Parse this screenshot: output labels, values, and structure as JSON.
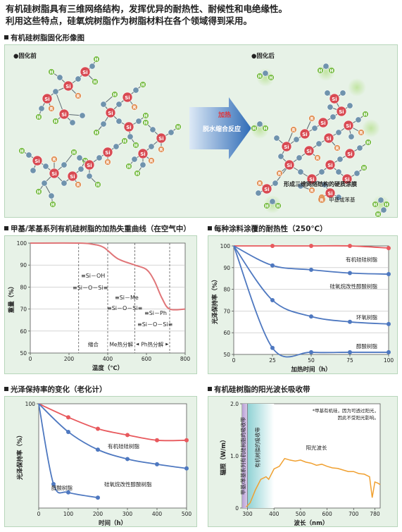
{
  "intro": {
    "line1": "有机硅树脂具有三维网络结构，发挥优异的耐热性、耐候性和电绝缘性。",
    "line2": "利用这些特点，硅氧烷树脂作为树脂材料在各个领域得到采用。"
  },
  "diagram": {
    "title": "有机硅树脂固化形像图",
    "before_label": "●固化前",
    "after_label": "●固化后",
    "arrow_top": "加热",
    "arrow_mid": "脱水缩合反应",
    "film_caption": "形成三维网络结构的硬质涂膜",
    "legend_symbol": "R",
    "legend_text": "甲基或苯基",
    "atom_si": "Si",
    "atom_h": "H",
    "atom_r": "R",
    "colors": {
      "si": "#d84a52",
      "o": "#6f93ad",
      "h": "#7fc050",
      "r": "#e2955c"
    }
  },
  "charts": [
    {
      "title": "甲基/苯基系列有机硅树脂的加热失重曲线（在空气中）",
      "type": "line",
      "xlabel": "温度（℃）",
      "ylabel": "重量（%）",
      "xlim": [
        0,
        800
      ],
      "ylim": [
        50,
        100
      ],
      "xticks": [
        "0",
        "200",
        "400",
        "600",
        "800"
      ],
      "yticks": [
        "50",
        "60",
        "70",
        "80",
        "90",
        "100"
      ],
      "series": [
        {
          "x": [
            0,
            250,
            320,
            380,
            450,
            540,
            600,
            640,
            680,
            720,
            800
          ],
          "y": [
            100,
            100,
            99.5,
            98,
            93,
            90,
            88,
            83,
            75,
            70,
            70
          ]
        }
      ],
      "regions": [
        "缩合",
        "Me热分解",
        "Ph热分解"
      ],
      "formulas": [
        "≡Si－OH",
        "≡Si－O－Si≡",
        "≡Si－Me",
        "≡Si－O－Si≡",
        "≡Si－Ph",
        "≡Si－O－Si≡"
      ],
      "color": "#e07578"
    },
    {
      "title": "每种涂料涂覆的耐热性（250℃）",
      "type": "line",
      "xlabel": "加热时间（h）",
      "ylabel": "光泽保持率（%）",
      "xlim": [
        0,
        100
      ],
      "ylim": [
        50,
        100
      ],
      "xticks": [
        "0",
        "25",
        "50",
        "75",
        "100"
      ],
      "yticks": [
        "50",
        "60",
        "70",
        "80",
        "90",
        "100"
      ],
      "series": [
        {
          "name": "有机硅硅树脂",
          "color": "#e8595d",
          "x": [
            0,
            25,
            50,
            75,
            100
          ],
          "y": [
            100,
            100,
            100,
            100,
            99
          ]
        },
        {
          "name": "硅氧烷改性醇酸树脂",
          "color": "#4e78c0",
          "x": [
            0,
            25,
            50,
            75,
            100
          ],
          "y": [
            100,
            91,
            89,
            87.5,
            87
          ]
        },
        {
          "name": "环氧树脂",
          "color": "#4e78c0",
          "x": [
            0,
            25,
            50,
            75,
            100
          ],
          "y": [
            100,
            75,
            67.5,
            65,
            64
          ]
        },
        {
          "name": "醇酸树脂",
          "color": "#4e78c0",
          "x": [
            0,
            25,
            50,
            75,
            100
          ],
          "y": [
            100,
            53,
            51,
            51,
            51
          ]
        }
      ]
    },
    {
      "title": "光泽保持率的变化（老化计）",
      "type": "line",
      "xlabel": "时间（h）",
      "ylabel": "光泽保持率（%）",
      "xlim": [
        0,
        500
      ],
      "ylim": [
        0,
        100
      ],
      "xticks": [
        "0",
        "100",
        "200",
        "300",
        "400",
        "500"
      ],
      "yticks": [
        "100"
      ],
      "series": [
        {
          "name": "有机硅硅树脂",
          "color": "#e8595d",
          "x": [
            0,
            100,
            200,
            300,
            400,
            500
          ],
          "y": [
            100,
            87,
            76,
            70,
            65,
            65
          ]
        },
        {
          "name": "硅氧烷改性醇酸树脂",
          "color": "#4e78c0",
          "x": [
            0,
            100,
            200,
            300,
            400,
            500
          ],
          "y": [
            100,
            73,
            56,
            47,
            42,
            38
          ]
        },
        {
          "name": "醇酸树脂",
          "color": "#4e78c0",
          "x": [
            0,
            50,
            100,
            200
          ],
          "y": [
            100,
            23,
            15,
            10
          ]
        }
      ]
    },
    {
      "title": "有机硅树脂的阳光波长吸收带",
      "type": "area",
      "xlabel": "波长（nm）",
      "ylabel": "辐照（W/m）",
      "xlim": [
        280,
        800
      ],
      "ylim": [
        0,
        2.0
      ],
      "xticks": [
        "300",
        "400",
        "500",
        "600",
        "700"
      ],
      "xtick_extra": "780",
      "yticks": [
        "0",
        "1.0",
        "2.0"
      ],
      "band1_label": "甲基/苯基系列有机硅树脂的吸收带",
      "band2_label": "有机树脂的吸收带",
      "note_lines": [
        "*甲基有机硅，因为可透过阳光，",
        "因此不受阳光影响。"
      ],
      "sun_label": "阳光波长",
      "series": [
        {
          "name": "阳光波长",
          "color": "#f0a030",
          "x": [
            295,
            310,
            330,
            350,
            370,
            380,
            400,
            420,
            440,
            460,
            480,
            500,
            520,
            540,
            560,
            580,
            600,
            620,
            640,
            660,
            680,
            700,
            720,
            740,
            760,
            770,
            780,
            790,
            800
          ],
          "y": [
            0.02,
            0.1,
            0.35,
            0.55,
            0.6,
            0.55,
            0.75,
            0.8,
            0.95,
            0.92,
            0.9,
            0.92,
            0.88,
            0.86,
            0.82,
            0.84,
            0.8,
            0.77,
            0.76,
            0.73,
            0.7,
            0.7,
            0.66,
            0.65,
            0.6,
            0.2,
            0.5,
            0.48,
            0.45
          ]
        }
      ]
    }
  ]
}
